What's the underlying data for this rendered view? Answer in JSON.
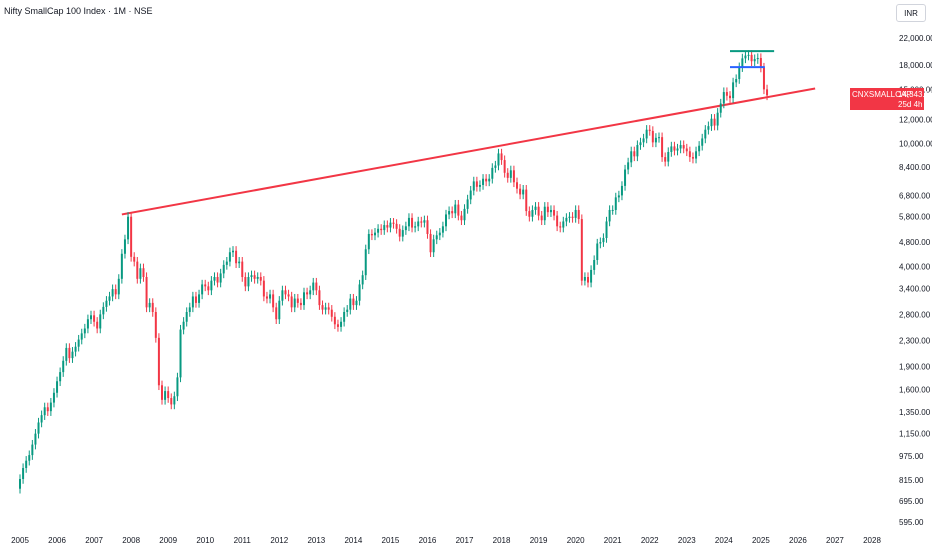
{
  "header": {
    "title": "Nifty SmallCap 100 Index · 1M · NSE",
    "currency": "INR"
  },
  "price_tag": {
    "symbol": "CNXSMALLCAP",
    "price": "14,343.50",
    "countdown": "25d 4h",
    "color": "#f23645"
  },
  "colors": {
    "up": "#089981",
    "down": "#f23645",
    "trendline": "#f23645",
    "level_top": "#089981",
    "level_mid": "#2962ff"
  },
  "chart_data": {
    "type": "candlestick",
    "scale": "log",
    "y_ticks": [
      "22,000.00",
      "18,000.00",
      "15,000.00",
      "12,000.00",
      "10,000.00",
      "8,400.00",
      "6,800.00",
      "5,800.00",
      "4,800.00",
      "4,000.00",
      "3,400.00",
      "2,800.00",
      "2,300.00",
      "1,900.00",
      "1,600.00",
      "1,350.00",
      "1,150.00",
      "975.00",
      "815.00",
      "695.00",
      "595.00"
    ],
    "x_ticks": [
      "2005",
      "2006",
      "2007",
      "2008",
      "2009",
      "2010",
      "2011",
      "2012",
      "2013",
      "2014",
      "2015",
      "2016",
      "2017",
      "2018",
      "2019",
      "2020",
      "2021",
      "2022",
      "2023",
      "2024",
      "2025",
      "2026",
      "2027",
      "2028"
    ],
    "trendline": {
      "start": {
        "date": "2007-10",
        "value": 5900
      },
      "end": {
        "date": "2025-04",
        "value": 15100
      }
    },
    "levels": [
      {
        "name": "top",
        "start": "2024-03",
        "end": "2025-04",
        "value": 19950
      },
      {
        "name": "mid",
        "start": "2024-03",
        "end": "2025-01",
        "value": 17700
      }
    ],
    "closes": [
      {
        "date": "2005-01",
        "close": 820
      },
      {
        "date": "2005-02",
        "close": 890
      },
      {
        "date": "2005-03",
        "close": 940
      },
      {
        "date": "2005-04",
        "close": 980
      },
      {
        "date": "2005-05",
        "close": 1060
      },
      {
        "date": "2005-06",
        "close": 1150
      },
      {
        "date": "2005-07",
        "close": 1250
      },
      {
        "date": "2005-08",
        "close": 1320
      },
      {
        "date": "2005-09",
        "close": 1400
      },
      {
        "date": "2005-10",
        "close": 1360
      },
      {
        "date": "2005-11",
        "close": 1450
      },
      {
        "date": "2005-12",
        "close": 1560
      },
      {
        "date": "2006-01",
        "close": 1700
      },
      {
        "date": "2006-02",
        "close": 1820
      },
      {
        "date": "2006-03",
        "close": 1980
      },
      {
        "date": "2006-04",
        "close": 2180
      },
      {
        "date": "2006-05",
        "close": 2020
      },
      {
        "date": "2006-06",
        "close": 2120
      },
      {
        "date": "2006-07",
        "close": 2200
      },
      {
        "date": "2006-08",
        "close": 2320
      },
      {
        "date": "2006-09",
        "close": 2430
      },
      {
        "date": "2006-10",
        "close": 2520
      },
      {
        "date": "2006-11",
        "close": 2700
      },
      {
        "date": "2006-12",
        "close": 2780
      },
      {
        "date": "2007-01",
        "close": 2650
      },
      {
        "date": "2007-02",
        "close": 2520
      },
      {
        "date": "2007-03",
        "close": 2800
      },
      {
        "date": "2007-04",
        "close": 2960
      },
      {
        "date": "2007-05",
        "close": 3100
      },
      {
        "date": "2007-06",
        "close": 3200
      },
      {
        "date": "2007-07",
        "close": 3380
      },
      {
        "date": "2007-08",
        "close": 3250
      },
      {
        "date": "2007-09",
        "close": 3650
      },
      {
        "date": "2007-10",
        "close": 4400
      },
      {
        "date": "2007-11",
        "close": 4900
      },
      {
        "date": "2007-12",
        "close": 5800
      },
      {
        "date": "2008-01",
        "close": 4300
      },
      {
        "date": "2008-02",
        "close": 4150
      },
      {
        "date": "2008-03",
        "close": 3650
      },
      {
        "date": "2008-04",
        "close": 3950
      },
      {
        "date": "2008-05",
        "close": 3700
      },
      {
        "date": "2008-06",
        "close": 2950
      },
      {
        "date": "2008-07",
        "close": 3050
      },
      {
        "date": "2008-08",
        "close": 2850
      },
      {
        "date": "2008-09",
        "close": 2350
      },
      {
        "date": "2008-10",
        "close": 1650
      },
      {
        "date": "2008-11",
        "close": 1480
      },
      {
        "date": "2008-12",
        "close": 1580
      },
      {
        "date": "2009-01",
        "close": 1500
      },
      {
        "date": "2009-02",
        "close": 1430
      },
      {
        "date": "2009-03",
        "close": 1520
      },
      {
        "date": "2009-04",
        "close": 1750
      },
      {
        "date": "2009-05",
        "close": 2500
      },
      {
        "date": "2009-06",
        "close": 2650
      },
      {
        "date": "2009-07",
        "close": 2850
      },
      {
        "date": "2009-08",
        "close": 2950
      },
      {
        "date": "2009-09",
        "close": 3200
      },
      {
        "date": "2009-10",
        "close": 3050
      },
      {
        "date": "2009-11",
        "close": 3250
      },
      {
        "date": "2009-12",
        "close": 3500
      },
      {
        "date": "2010-01",
        "close": 3450
      },
      {
        "date": "2010-02",
        "close": 3350
      },
      {
        "date": "2010-03",
        "close": 3600
      },
      {
        "date": "2010-04",
        "close": 3700
      },
      {
        "date": "2010-05",
        "close": 3550
      },
      {
        "date": "2010-06",
        "close": 3800
      },
      {
        "date": "2010-07",
        "close": 4050
      },
      {
        "date": "2010-08",
        "close": 4150
      },
      {
        "date": "2010-09",
        "close": 4450
      },
      {
        "date": "2010-10",
        "close": 4500
      },
      {
        "date": "2010-11",
        "close": 4100
      },
      {
        "date": "2010-12",
        "close": 4150
      },
      {
        "date": "2011-01",
        "close": 3700
      },
      {
        "date": "2011-02",
        "close": 3450
      },
      {
        "date": "2011-03",
        "close": 3700
      },
      {
        "date": "2011-04",
        "close": 3750
      },
      {
        "date": "2011-05",
        "close": 3650
      },
      {
        "date": "2011-06",
        "close": 3700
      },
      {
        "date": "2011-07",
        "close": 3600
      },
      {
        "date": "2011-08",
        "close": 3200
      },
      {
        "date": "2011-09",
        "close": 3150
      },
      {
        "date": "2011-10",
        "close": 3250
      },
      {
        "date": "2011-11",
        "close": 2950
      },
      {
        "date": "2011-12",
        "close": 2700
      },
      {
        "date": "2012-01",
        "close": 3100
      },
      {
        "date": "2012-02",
        "close": 3350
      },
      {
        "date": "2012-03",
        "close": 3250
      },
      {
        "date": "2012-04",
        "close": 3200
      },
      {
        "date": "2012-05",
        "close": 2950
      },
      {
        "date": "2012-06",
        "close": 3150
      },
      {
        "date": "2012-07",
        "close": 3050
      },
      {
        "date": "2012-08",
        "close": 3000
      },
      {
        "date": "2012-09",
        "close": 3300
      },
      {
        "date": "2012-10",
        "close": 3250
      },
      {
        "date": "2012-11",
        "close": 3350
      },
      {
        "date": "2012-12",
        "close": 3550
      },
      {
        "date": "2013-01",
        "close": 3350
      },
      {
        "date": "2013-02",
        "close": 3000
      },
      {
        "date": "2013-03",
        "close": 2900
      },
      {
        "date": "2013-04",
        "close": 2950
      },
      {
        "date": "2013-05",
        "close": 2900
      },
      {
        "date": "2013-06",
        "close": 2750
      },
      {
        "date": "2013-07",
        "close": 2600
      },
      {
        "date": "2013-08",
        "close": 2550
      },
      {
        "date": "2013-09",
        "close": 2650
      },
      {
        "date": "2013-10",
        "close": 2850
      },
      {
        "date": "2013-11",
        "close": 2900
      },
      {
        "date": "2013-12",
        "close": 3150
      },
      {
        "date": "2014-01",
        "close": 3000
      },
      {
        "date": "2014-02",
        "close": 3100
      },
      {
        "date": "2014-03",
        "close": 3500
      },
      {
        "date": "2014-04",
        "close": 3750
      },
      {
        "date": "2014-05",
        "close": 4550
      },
      {
        "date": "2014-06",
        "close": 5100
      },
      {
        "date": "2014-07",
        "close": 5050
      },
      {
        "date": "2014-08",
        "close": 5150
      },
      {
        "date": "2014-09",
        "close": 5300
      },
      {
        "date": "2014-10",
        "close": 5250
      },
      {
        "date": "2014-11",
        "close": 5450
      },
      {
        "date": "2014-12",
        "close": 5350
      },
      {
        "date": "2015-01",
        "close": 5550
      },
      {
        "date": "2015-02",
        "close": 5500
      },
      {
        "date": "2015-03",
        "close": 5300
      },
      {
        "date": "2015-04",
        "close": 5000
      },
      {
        "date": "2015-05",
        "close": 5250
      },
      {
        "date": "2015-06",
        "close": 5400
      },
      {
        "date": "2015-07",
        "close": 5750
      },
      {
        "date": "2015-08",
        "close": 5350
      },
      {
        "date": "2015-09",
        "close": 5400
      },
      {
        "date": "2015-10",
        "close": 5600
      },
      {
        "date": "2015-11",
        "close": 5550
      },
      {
        "date": "2015-12",
        "close": 5650
      },
      {
        "date": "2016-01",
        "close": 5100
      },
      {
        "date": "2016-02",
        "close": 4450
      },
      {
        "date": "2016-03",
        "close": 4900
      },
      {
        "date": "2016-04",
        "close": 5050
      },
      {
        "date": "2016-05",
        "close": 5150
      },
      {
        "date": "2016-06",
        "close": 5400
      },
      {
        "date": "2016-07",
        "close": 5900
      },
      {
        "date": "2016-08",
        "close": 6050
      },
      {
        "date": "2016-09",
        "close": 5950
      },
      {
        "date": "2016-10",
        "close": 6350
      },
      {
        "date": "2016-11",
        "close": 5850
      },
      {
        "date": "2016-12",
        "close": 5650
      },
      {
        "date": "2017-01",
        "close": 6150
      },
      {
        "date": "2017-02",
        "close": 6600
      },
      {
        "date": "2017-03",
        "close": 7050
      },
      {
        "date": "2017-04",
        "close": 7550
      },
      {
        "date": "2017-05",
        "close": 7250
      },
      {
        "date": "2017-06",
        "close": 7350
      },
      {
        "date": "2017-07",
        "close": 7700
      },
      {
        "date": "2017-08",
        "close": 7550
      },
      {
        "date": "2017-09",
        "close": 7700
      },
      {
        "date": "2017-10",
        "close": 8350
      },
      {
        "date": "2017-11",
        "close": 8500
      },
      {
        "date": "2017-12",
        "close": 9300
      },
      {
        "date": "2018-01",
        "close": 8850
      },
      {
        "date": "2018-02",
        "close": 8050
      },
      {
        "date": "2018-03",
        "close": 7750
      },
      {
        "date": "2018-04",
        "close": 8200
      },
      {
        "date": "2018-05",
        "close": 7500
      },
      {
        "date": "2018-06",
        "close": 7150
      },
      {
        "date": "2018-07",
        "close": 6850
      },
      {
        "date": "2018-08",
        "close": 7100
      },
      {
        "date": "2018-09",
        "close": 6050
      },
      {
        "date": "2018-10",
        "close": 5800
      },
      {
        "date": "2018-11",
        "close": 6100
      },
      {
        "date": "2018-12",
        "close": 6250
      },
      {
        "date": "2019-01",
        "close": 5850
      },
      {
        "date": "2019-02",
        "close": 5650
      },
      {
        "date": "2019-03",
        "close": 6250
      },
      {
        "date": "2019-04",
        "close": 6000
      },
      {
        "date": "2019-05",
        "close": 6100
      },
      {
        "date": "2019-06",
        "close": 5850
      },
      {
        "date": "2019-07",
        "close": 5400
      },
      {
        "date": "2019-08",
        "close": 5350
      },
      {
        "date": "2019-09",
        "close": 5600
      },
      {
        "date": "2019-10",
        "close": 5750
      },
      {
        "date": "2019-11",
        "close": 5800
      },
      {
        "date": "2019-12",
        "close": 5750
      },
      {
        "date": "2020-01",
        "close": 6100
      },
      {
        "date": "2020-02",
        "close": 5700
      },
      {
        "date": "2020-03",
        "close": 3600
      },
      {
        "date": "2020-04",
        "close": 3700
      },
      {
        "date": "2020-05",
        "close": 3550
      },
      {
        "date": "2020-06",
        "close": 3900
      },
      {
        "date": "2020-07",
        "close": 4200
      },
      {
        "date": "2020-08",
        "close": 4750
      },
      {
        "date": "2020-09",
        "close": 4800
      },
      {
        "date": "2020-10",
        "close": 4950
      },
      {
        "date": "2020-11",
        "close": 5600
      },
      {
        "date": "2020-12",
        "close": 6100
      },
      {
        "date": "2021-01",
        "close": 6100
      },
      {
        "date": "2021-02",
        "close": 6700
      },
      {
        "date": "2021-03",
        "close": 6800
      },
      {
        "date": "2021-04",
        "close": 7300
      },
      {
        "date": "2021-05",
        "close": 8250
      },
      {
        "date": "2021-06",
        "close": 8700
      },
      {
        "date": "2021-07",
        "close": 9450
      },
      {
        "date": "2021-08",
        "close": 9100
      },
      {
        "date": "2021-09",
        "close": 9900
      },
      {
        "date": "2021-10",
        "close": 10100
      },
      {
        "date": "2021-11",
        "close": 10400
      },
      {
        "date": "2021-12",
        "close": 11100
      },
      {
        "date": "2022-01",
        "close": 11000
      },
      {
        "date": "2022-02",
        "close": 10100
      },
      {
        "date": "2022-03",
        "close": 10450
      },
      {
        "date": "2022-04",
        "close": 10500
      },
      {
        "date": "2022-05",
        "close": 9050
      },
      {
        "date": "2022-06",
        "close": 8750
      },
      {
        "date": "2022-07",
        "close": 9400
      },
      {
        "date": "2022-08",
        "close": 9800
      },
      {
        "date": "2022-09",
        "close": 9500
      },
      {
        "date": "2022-10",
        "close": 9650
      },
      {
        "date": "2022-11",
        "close": 9900
      },
      {
        "date": "2022-12",
        "close": 9650
      },
      {
        "date": "2023-01",
        "close": 9450
      },
      {
        "date": "2023-02",
        "close": 9050
      },
      {
        "date": "2023-03",
        "close": 8950
      },
      {
        "date": "2023-04",
        "close": 9450
      },
      {
        "date": "2023-05",
        "close": 9850
      },
      {
        "date": "2023-06",
        "close": 10400
      },
      {
        "date": "2023-07",
        "close": 11100
      },
      {
        "date": "2023-08",
        "close": 11400
      },
      {
        "date": "2023-09",
        "close": 12050
      },
      {
        "date": "2023-10",
        "close": 11450
      },
      {
        "date": "2023-11",
        "close": 12600
      },
      {
        "date": "2023-12",
        "close": 13500
      },
      {
        "date": "2024-01",
        "close": 14700
      },
      {
        "date": "2024-02",
        "close": 14300
      },
      {
        "date": "2024-03",
        "close": 14050
      },
      {
        "date": "2024-04",
        "close": 15800
      },
      {
        "date": "2024-05",
        "close": 16200
      },
      {
        "date": "2024-06",
        "close": 17700
      },
      {
        "date": "2024-07",
        "close": 18900
      },
      {
        "date": "2024-08",
        "close": 19300
      },
      {
        "date": "2024-09",
        "close": 19400
      },
      {
        "date": "2024-10",
        "close": 18500
      },
      {
        "date": "2024-11",
        "close": 18800
      },
      {
        "date": "2024-12",
        "close": 18950
      },
      {
        "date": "2025-01",
        "close": 17650
      },
      {
        "date": "2025-02",
        "close": 15000
      },
      {
        "date": "2025-03",
        "close": 14343.5
      }
    ]
  }
}
